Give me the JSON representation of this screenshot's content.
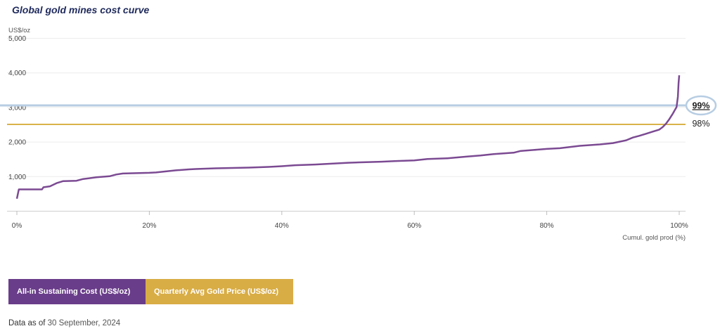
{
  "header": {
    "title": "Global gold mines cost curve"
  },
  "chart_data": {
    "type": "line",
    "ylabel": "US$/oz",
    "xlabel": "Cumul. gold prod (%)",
    "ylim": [
      0,
      5000
    ],
    "xlim": [
      0,
      100
    ],
    "y_ticks": [
      "5,000",
      "4,000",
      "3,000",
      "2,000",
      "1,000"
    ],
    "y_tick_values": [
      5000,
      4000,
      3000,
      2000,
      1000
    ],
    "x_ticks": [
      "0%",
      "20%",
      "40%",
      "60%",
      "80%",
      "100%"
    ],
    "x_tick_values": [
      0,
      20,
      40,
      60,
      80,
      100
    ],
    "grid": "horizontal",
    "series": [
      {
        "name": "All-in Sustaining Cost (US$/oz)",
        "color": "#7b4a92",
        "x": [
          0,
          0.3,
          1,
          3,
          3.8,
          4,
          5,
          6,
          7,
          9,
          10,
          12,
          14,
          15,
          16,
          20,
          21,
          22,
          24,
          26,
          27,
          30,
          35,
          38,
          40,
          42,
          45,
          48,
          50,
          55,
          57,
          60,
          62,
          65,
          68,
          70,
          72,
          75,
          76,
          78,
          80,
          82,
          85,
          88,
          90,
          91,
          92,
          93,
          94,
          95,
          96,
          97,
          97.5,
          98,
          98.5,
          99,
          99.3,
          99.6,
          99.8,
          99.9,
          100
        ],
        "values": [
          350,
          620,
          620,
          620,
          620,
          680,
          710,
          800,
          860,
          870,
          920,
          970,
          1000,
          1050,
          1080,
          1100,
          1110,
          1130,
          1170,
          1200,
          1210,
          1230,
          1250,
          1270,
          1290,
          1320,
          1340,
          1370,
          1390,
          1420,
          1440,
          1460,
          1500,
          1520,
          1570,
          1600,
          1640,
          1680,
          1730,
          1760,
          1790,
          1810,
          1880,
          1920,
          1960,
          2000,
          2040,
          2120,
          2170,
          2230,
          2290,
          2350,
          2420,
          2520,
          2650,
          2800,
          2900,
          3000,
          3300,
          3700,
          3920
        ]
      },
      {
        "name": "Quarterly Avg Gold Price (US$/oz)",
        "color": "#d9b34a",
        "type": "hline",
        "y": 2500
      }
    ],
    "reference_line": {
      "y": 3050,
      "color": "#b7cde3"
    },
    "annotations": [
      {
        "text": "99%",
        "y": 3050,
        "highlight": true
      },
      {
        "text": "98%",
        "y": 2500
      }
    ]
  },
  "legend": {
    "items": [
      {
        "label": "All-in Sustaining Cost (US$/oz)",
        "color": "#6a3d8a"
      },
      {
        "label": "Quarterly Avg Gold Price (US$/oz)",
        "color": "#d9ad45"
      }
    ]
  },
  "footer": {
    "prefix": "Data as of",
    "date": "30 September, 2024"
  }
}
